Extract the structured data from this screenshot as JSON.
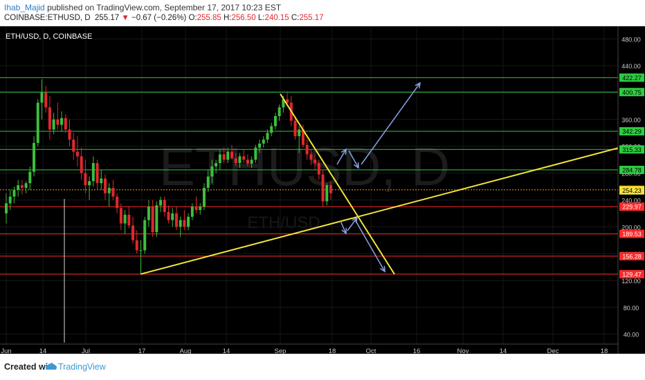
{
  "header": {
    "author": "Ihab_Majid",
    "published": "published on TradingView.com, September 17, 2017 10:23 EST",
    "symbol": "COINBASE:ETHUSD, D",
    "last": "255.17",
    "change": "−0.67 (−0.26%)",
    "o_label": "O:",
    "o": "255.85",
    "h_label": "H:",
    "h": "256.50",
    "l_label": "L:",
    "l": "240.15",
    "c_label": "C:",
    "c": "255.17"
  },
  "chart_data": {
    "type": "candlestick",
    "title": "ETH/USD, D, COINBASE",
    "watermark": "ETHUSD, D",
    "watermark_sub": "ETH/USD",
    "x_ticks": [
      "Jun",
      "14",
      "Jul",
      "17",
      "Aug",
      "14",
      "Sep",
      "18",
      "Oct",
      "16",
      "Nov",
      "14",
      "Dec",
      "18"
    ],
    "y_ticks": [
      40,
      80,
      120,
      160,
      200,
      240,
      280,
      320,
      360,
      400,
      440,
      480
    ],
    "ylim": [
      20,
      500
    ],
    "horizontal_levels": [
      {
        "value": 422.27,
        "color": "#2ecc40"
      },
      {
        "value": 400.75,
        "color": "#2ecc40"
      },
      {
        "value": 342.29,
        "color": "#2ecc40"
      },
      {
        "value": 315.33,
        "color": "#2ecc40"
      },
      {
        "value": 284.78,
        "color": "#2ecc40"
      },
      {
        "value": 255.17,
        "color": "#f2a400",
        "kind": "last"
      },
      {
        "value": 254.23,
        "color": "#f5e33c",
        "kind": "trend"
      },
      {
        "value": 229.97,
        "color": "#ff2a2a"
      },
      {
        "value": 189.53,
        "color": "#ff2a2a"
      },
      {
        "value": 156.28,
        "color": "#ff2a2a"
      },
      {
        "value": 129.47,
        "color": "#ff2a2a"
      }
    ],
    "candles": [
      {
        "o": 220,
        "h": 250,
        "l": 205,
        "c": 235
      },
      {
        "o": 235,
        "h": 255,
        "l": 225,
        "c": 245
      },
      {
        "o": 245,
        "h": 260,
        "l": 235,
        "c": 255
      },
      {
        "o": 255,
        "h": 270,
        "l": 245,
        "c": 262
      },
      {
        "o": 262,
        "h": 270,
        "l": 248,
        "c": 258
      },
      {
        "o": 258,
        "h": 268,
        "l": 250,
        "c": 265
      },
      {
        "o": 265,
        "h": 290,
        "l": 255,
        "c": 282
      },
      {
        "o": 282,
        "h": 335,
        "l": 275,
        "c": 325
      },
      {
        "o": 325,
        "h": 390,
        "l": 320,
        "c": 385
      },
      {
        "o": 385,
        "h": 420,
        "l": 360,
        "c": 400
      },
      {
        "o": 400,
        "h": 410,
        "l": 370,
        "c": 378
      },
      {
        "o": 378,
        "h": 395,
        "l": 330,
        "c": 345
      },
      {
        "o": 345,
        "h": 370,
        "l": 338,
        "c": 360
      },
      {
        "o": 360,
        "h": 385,
        "l": 345,
        "c": 352
      },
      {
        "o": 352,
        "h": 372,
        "l": 342,
        "c": 362
      },
      {
        "o": 362,
        "h": 368,
        "l": 340,
        "c": 345
      },
      {
        "o": 345,
        "h": 360,
        "l": 320,
        "c": 330
      },
      {
        "o": 330,
        "h": 340,
        "l": 300,
        "c": 312
      },
      {
        "o": 312,
        "h": 335,
        "l": 290,
        "c": 305
      },
      {
        "o": 305,
        "h": 318,
        "l": 270,
        "c": 280
      },
      {
        "o": 280,
        "h": 300,
        "l": 250,
        "c": 262
      },
      {
        "o": 262,
        "h": 275,
        "l": 240,
        "c": 268
      },
      {
        "o": 268,
        "h": 305,
        "l": 260,
        "c": 295
      },
      {
        "o": 295,
        "h": 300,
        "l": 255,
        "c": 265
      },
      {
        "o": 265,
        "h": 285,
        "l": 255,
        "c": 272
      },
      {
        "o": 272,
        "h": 278,
        "l": 240,
        "c": 250
      },
      {
        "o": 250,
        "h": 265,
        "l": 230,
        "c": 258
      },
      {
        "o": 258,
        "h": 270,
        "l": 240,
        "c": 245
      },
      {
        "o": 245,
        "h": 250,
        "l": 220,
        "c": 228
      },
      {
        "o": 228,
        "h": 235,
        "l": 195,
        "c": 205
      },
      {
        "o": 205,
        "h": 225,
        "l": 190,
        "c": 218
      },
      {
        "o": 218,
        "h": 230,
        "l": 198,
        "c": 202
      },
      {
        "o": 202,
        "h": 215,
        "l": 175,
        "c": 180
      },
      {
        "o": 180,
        "h": 195,
        "l": 160,
        "c": 165
      },
      {
        "o": 165,
        "h": 180,
        "l": 130,
        "c": 165
      },
      {
        "o": 165,
        "h": 215,
        "l": 160,
        "c": 210
      },
      {
        "o": 210,
        "h": 240,
        "l": 200,
        "c": 230
      },
      {
        "o": 230,
        "h": 240,
        "l": 185,
        "c": 192
      },
      {
        "o": 192,
        "h": 238,
        "l": 185,
        "c": 232
      },
      {
        "o": 232,
        "h": 245,
        "l": 222,
        "c": 240
      },
      {
        "o": 240,
        "h": 245,
        "l": 215,
        "c": 222
      },
      {
        "o": 222,
        "h": 232,
        "l": 205,
        "c": 210
      },
      {
        "o": 210,
        "h": 228,
        "l": 200,
        "c": 220
      },
      {
        "o": 220,
        "h": 230,
        "l": 195,
        "c": 200
      },
      {
        "o": 200,
        "h": 215,
        "l": 185,
        "c": 210
      },
      {
        "o": 210,
        "h": 225,
        "l": 195,
        "c": 200
      },
      {
        "o": 200,
        "h": 220,
        "l": 195,
        "c": 215
      },
      {
        "o": 215,
        "h": 235,
        "l": 210,
        "c": 230
      },
      {
        "o": 230,
        "h": 245,
        "l": 220,
        "c": 225
      },
      {
        "o": 225,
        "h": 235,
        "l": 218,
        "c": 230
      },
      {
        "o": 230,
        "h": 265,
        "l": 225,
        "c": 258
      },
      {
        "o": 258,
        "h": 285,
        "l": 252,
        "c": 275
      },
      {
        "o": 275,
        "h": 300,
        "l": 265,
        "c": 290
      },
      {
        "o": 290,
        "h": 300,
        "l": 280,
        "c": 295
      },
      {
        "o": 295,
        "h": 315,
        "l": 285,
        "c": 308
      },
      {
        "o": 308,
        "h": 318,
        "l": 295,
        "c": 300
      },
      {
        "o": 300,
        "h": 318,
        "l": 295,
        "c": 312
      },
      {
        "o": 312,
        "h": 322,
        "l": 300,
        "c": 302
      },
      {
        "o": 302,
        "h": 310,
        "l": 290,
        "c": 295
      },
      {
        "o": 295,
        "h": 310,
        "l": 288,
        "c": 305
      },
      {
        "o": 305,
        "h": 315,
        "l": 295,
        "c": 300
      },
      {
        "o": 300,
        "h": 308,
        "l": 290,
        "c": 294
      },
      {
        "o": 294,
        "h": 305,
        "l": 288,
        "c": 300
      },
      {
        "o": 300,
        "h": 322,
        "l": 295,
        "c": 318
      },
      {
        "o": 318,
        "h": 330,
        "l": 310,
        "c": 324
      },
      {
        "o": 324,
        "h": 335,
        "l": 318,
        "c": 330
      },
      {
        "o": 330,
        "h": 345,
        "l": 325,
        "c": 340
      },
      {
        "o": 340,
        "h": 355,
        "l": 335,
        "c": 350
      },
      {
        "o": 350,
        "h": 370,
        "l": 345,
        "c": 365
      },
      {
        "o": 365,
        "h": 382,
        "l": 358,
        "c": 378
      },
      {
        "o": 378,
        "h": 395,
        "l": 370,
        "c": 390
      },
      {
        "o": 390,
        "h": 402,
        "l": 380,
        "c": 385
      },
      {
        "o": 385,
        "h": 395,
        "l": 350,
        "c": 358
      },
      {
        "o": 358,
        "h": 365,
        "l": 330,
        "c": 335
      },
      {
        "o": 335,
        "h": 350,
        "l": 310,
        "c": 345
      },
      {
        "o": 345,
        "h": 352,
        "l": 318,
        "c": 322
      },
      {
        "o": 322,
        "h": 330,
        "l": 300,
        "c": 308
      },
      {
        "o": 308,
        "h": 315,
        "l": 292,
        "c": 300
      },
      {
        "o": 300,
        "h": 308,
        "l": 285,
        "c": 295
      },
      {
        "o": 295,
        "h": 300,
        "l": 270,
        "c": 278
      },
      {
        "o": 278,
        "h": 285,
        "l": 230,
        "c": 238
      },
      {
        "o": 238,
        "h": 265,
        "l": 232,
        "c": 262
      },
      {
        "o": 262,
        "h": 268,
        "l": 240,
        "c": 250
      }
    ]
  },
  "footer": {
    "created": "Created with",
    "brand": "TradingView"
  },
  "colors": {
    "up": "#3dbe3d",
    "down": "#e0282e",
    "trend": "#f2e43a",
    "arrow": "#8aa4e8",
    "bg": "#000000"
  }
}
